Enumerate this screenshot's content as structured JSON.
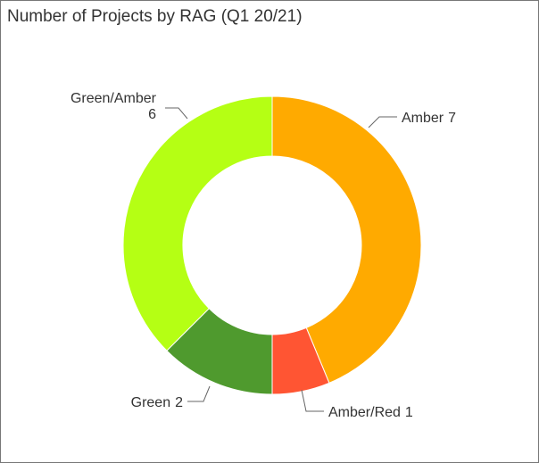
{
  "chart_data": {
    "type": "donut",
    "title": "Number of Projects by RAG (Q1 20/21)",
    "categories": [
      "Amber",
      "Amber/Red",
      "Green",
      "Green/Amber"
    ],
    "values": [
      7,
      1,
      2,
      6
    ],
    "colors": [
      "#ffaa00",
      "#ff5533",
      "#4f9a2e",
      "#b5ff14"
    ]
  }
}
